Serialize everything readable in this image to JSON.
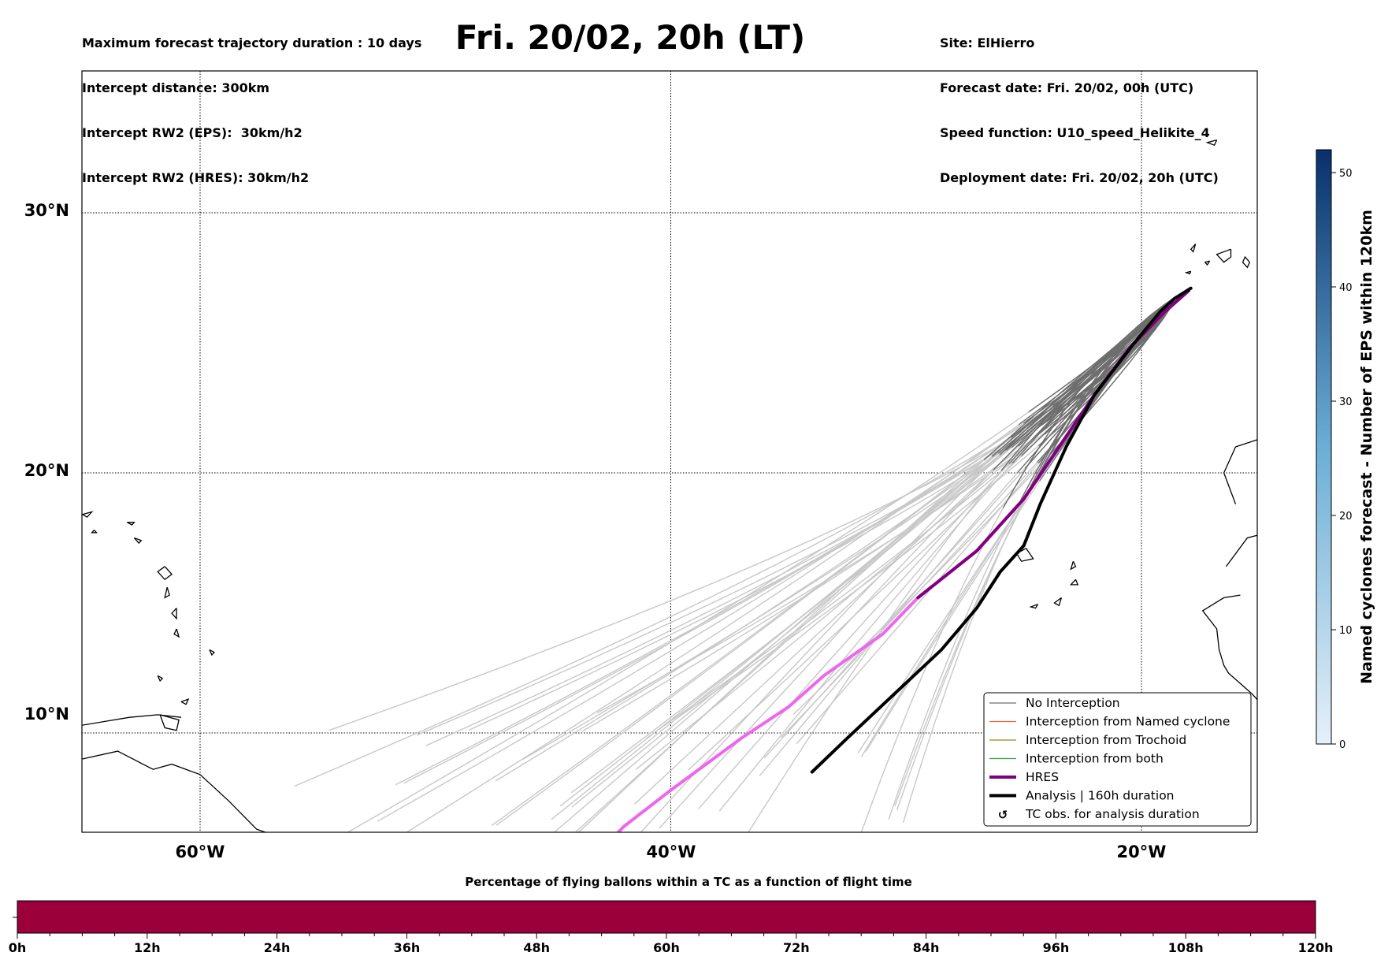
{
  "header_left": [
    "Maximum forecast trajectory duration : 10 days",
    "Intercept distance: 300km",
    "Intercept RW2 (EPS):  30km/h2",
    "Intercept RW2 (HRES): 30km/h2"
  ],
  "title": "Fri. 20/02, 20h (LT)",
  "header_right": [
    "Site: ElHierro",
    "Forecast date: Fri. 20/02, 00h (UTC)",
    "Speed function: U10_speed_Helikite_4",
    "Deployment date: Fri. 20/02, 20h (UTC)"
  ],
  "map": {
    "lat_labels": [
      "30°N",
      "20°N",
      "10°N"
    ],
    "lon_labels": [
      "60°W",
      "40°W",
      "20°W"
    ],
    "colors": {
      "no_interception": "#6e6e6e",
      "no_interception_light": "#c8c8c8",
      "named_cyclone": "#e8643c",
      "trochoid": "#8c8c28",
      "both": "#3c9c3c",
      "hres": "#800080",
      "hres_light": "#ee66ee",
      "analysis": "#000000"
    },
    "hres_track": [
      [
        -43.5,
        5
      ],
      [
        -42,
        6.4
      ],
      [
        -40,
        7.8
      ],
      [
        -37,
        9.8
      ],
      [
        -35,
        11
      ],
      [
        -33.5,
        12.2
      ],
      [
        -31,
        13.8
      ],
      [
        -29.5,
        15.2
      ],
      [
        -27,
        17
      ],
      [
        -25,
        19
      ],
      [
        -23.5,
        21
      ],
      [
        -22,
        23
      ],
      [
        -20.5,
        24.8
      ],
      [
        -19,
        26.2
      ],
      [
        -18,
        27
      ]
    ],
    "analysis_track": [
      [
        -34,
        8.5
      ],
      [
        -32.5,
        9.8
      ],
      [
        -30.5,
        11.5
      ],
      [
        -28.5,
        13.2
      ],
      [
        -27,
        14.8
      ],
      [
        -26,
        16.2
      ],
      [
        -25,
        17.2
      ],
      [
        -24.3,
        18.8
      ],
      [
        -23.2,
        21
      ],
      [
        -22,
        23
      ],
      [
        -20.3,
        25
      ],
      [
        -19.2,
        26.2
      ],
      [
        -18.6,
        26.7
      ],
      [
        -17.9,
        27.1
      ]
    ]
  },
  "legend": {
    "items": [
      {
        "label": "No Interception",
        "kind": "line",
        "color": "#6e6e6e"
      },
      {
        "label": "Interception from Named cyclone",
        "kind": "line",
        "color": "#e8643c"
      },
      {
        "label": "Interception from Trochoid",
        "kind": "line",
        "color": "#8c8c28"
      },
      {
        "label": "Interception from both",
        "kind": "line",
        "color": "#3c9c3c"
      },
      {
        "label": "HRES",
        "kind": "thick",
        "color": "#800080"
      },
      {
        "label": "Analysis | 160h duration",
        "kind": "thick",
        "color": "#000000"
      },
      {
        "label": "TC obs. for analysis duration",
        "kind": "symbol",
        "color": "#000000"
      }
    ]
  },
  "colorbar": {
    "label": "Named cyclones forecast - Number of EPS within 120km",
    "ticks": [
      "0",
      "10",
      "20",
      "30",
      "40",
      "50"
    ],
    "min": 0,
    "max": 52,
    "color_low": "#e6f0fa",
    "color_high": "#08306b"
  },
  "timeline": {
    "caption": "Percentage of flying ballons within a TC as a function of flight time",
    "labels": [
      "0h",
      "12h",
      "24h",
      "36h",
      "48h",
      "60h",
      "72h",
      "84h",
      "96h",
      "108h",
      "120h"
    ],
    "fill_color": "#9b003b"
  }
}
